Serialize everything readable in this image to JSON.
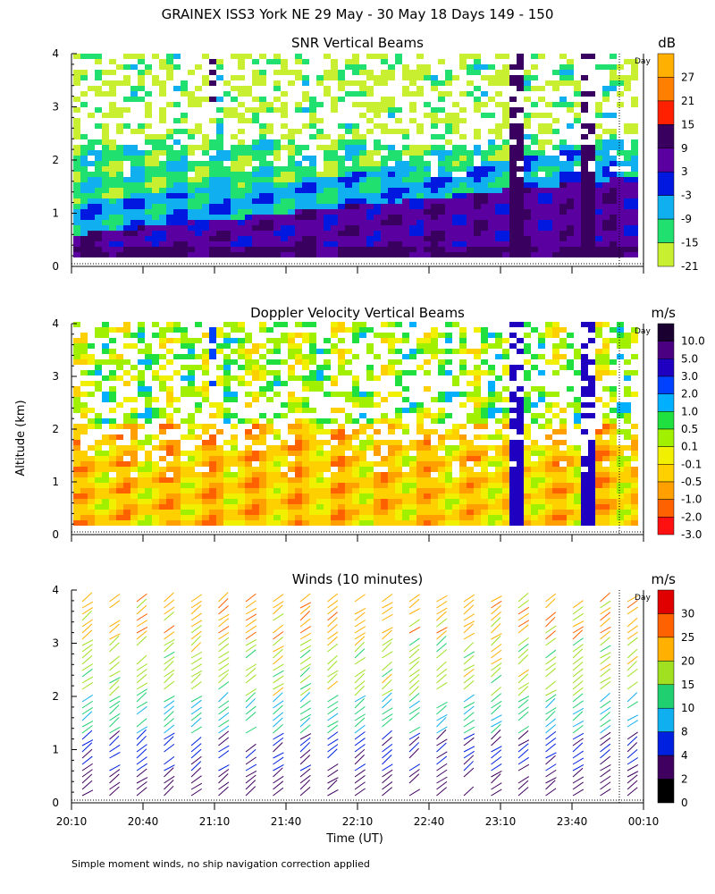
{
  "figure": {
    "title": "GRAINEX ISS3 York NE  29 May - 30 May 18 Days 149 - 150",
    "ylabel": "Altitude (km)",
    "xlabel": "Time (UT)",
    "footnote": "Simple moment winds, no ship navigation correction applied",
    "day_marker": "Day"
  },
  "chart_data": [
    {
      "type": "heatmap",
      "title": "SNR Vertical Beams",
      "xlabel": "",
      "ylabel": "",
      "x_ticks": [
        "20:10",
        "20:40",
        "21:10",
        "21:40",
        "22:10",
        "22:40",
        "23:10",
        "23:40",
        "00:10"
      ],
      "y_ticks": [
        "0",
        "1",
        "2",
        "3",
        "4"
      ],
      "ylim": [
        0,
        4
      ],
      "colorbar": {
        "unit": "dB",
        "labels": [
          "27",
          "21",
          "15",
          "9",
          "3",
          "-3",
          "-9",
          "-15",
          "-21"
        ],
        "colors": [
          "#ffb000",
          "#ff8000",
          "#ff2000",
          "#3a0060",
          "#5a00a0",
          "#0018e0",
          "#10b0f0",
          "#20e070",
          "#c8f030"
        ]
      },
      "day_marker": "Day",
      "approx_profile": {
        "description_values_dB": {
          "layer_0_0p3km": 9,
          "layer_0p3_1km": 3,
          "layer_1_2km": -9,
          "layer_2_3km": -15,
          "layer_3_4km": -21
        }
      }
    },
    {
      "type": "heatmap",
      "title": "Doppler Velocity Vertical Beams",
      "xlabel": "",
      "ylabel": "",
      "x_ticks": [
        "20:10",
        "20:40",
        "21:10",
        "21:40",
        "22:10",
        "22:40",
        "23:10",
        "23:40",
        "00:10"
      ],
      "y_ticks": [
        "0",
        "1",
        "2",
        "3",
        "4"
      ],
      "ylim": [
        0,
        4
      ],
      "colorbar": {
        "unit": "m/s",
        "labels": [
          "10.0",
          "5.0",
          "3.0",
          "2.0",
          "1.0",
          "0.5",
          "0.1",
          "-0.1",
          "-0.5",
          "-1.0",
          "-2.0",
          "-3.0"
        ],
        "colors": [
          "#1a0030",
          "#4a0080",
          "#2000c0",
          "#0040ff",
          "#00b0ff",
          "#20e040",
          "#a0f000",
          "#f0f000",
          "#ffd000",
          "#ffa000",
          "#ff6000",
          "#ff1010"
        ]
      },
      "day_marker": "Day"
    },
    {
      "type": "scatter",
      "title": "Winds (10 minutes)",
      "xlabel": "Time (UT)",
      "ylabel": "",
      "x_ticks": [
        "20:10",
        "20:40",
        "21:10",
        "21:40",
        "22:10",
        "22:40",
        "23:10",
        "23:40",
        "00:10"
      ],
      "y_ticks": [
        "0",
        "1",
        "2",
        "3",
        "4"
      ],
      "ylim": [
        0,
        4
      ],
      "colorbar": {
        "unit": "m/s",
        "labels": [
          "30",
          "25",
          "20",
          "15",
          "10",
          "8",
          "4",
          "2",
          "0"
        ],
        "colors": [
          "#e00000",
          "#ff6000",
          "#ffb000",
          "#a0e020",
          "#20d070",
          "#10b0f0",
          "#0020e0",
          "#400060",
          "#000000"
        ]
      },
      "day_marker": "Day"
    }
  ]
}
